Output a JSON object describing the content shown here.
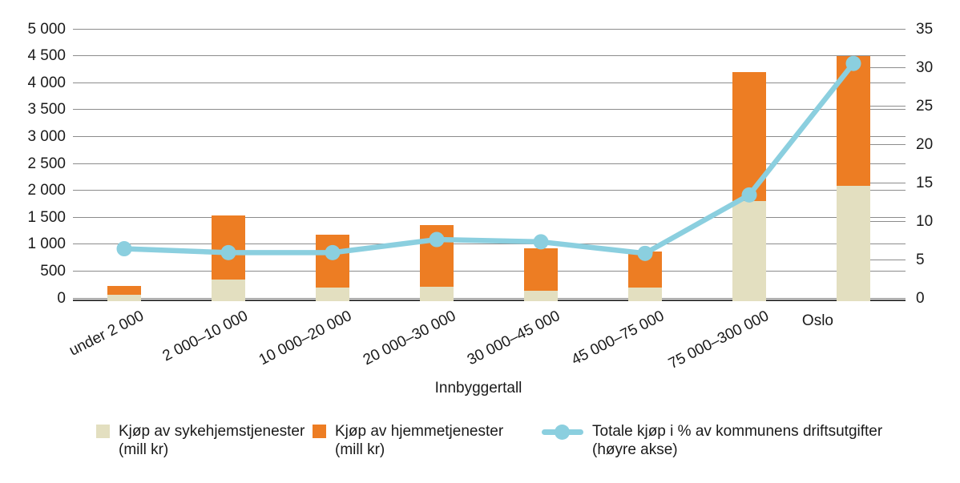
{
  "chart_data": {
    "type": "bar",
    "subtype": "stacked-bar-with-line-combo",
    "categories": [
      "under 2 000",
      "2 000–10 000",
      "10 000–20 000",
      "20 000–30 000",
      "30 000–45 000",
      "45 000–75 000",
      "75 000–300 000",
      "Oslo"
    ],
    "xlabel": "Innbyggertall",
    "grid": true,
    "legend_position": "bottom",
    "left_axis": {
      "min": 0,
      "max": 5000,
      "step": 500,
      "tick_labels": [
        "5 000",
        "4 500",
        "4 000",
        "3 500",
        "3 000",
        "2 500",
        "2 000",
        "1 500",
        "1 000",
        "500",
        "0"
      ]
    },
    "right_axis": {
      "min": 0,
      "max": 35,
      "step": 5,
      "tick_labels": [
        "35",
        "30",
        "25",
        "20",
        "15",
        "10",
        "5",
        "0"
      ]
    },
    "series": [
      {
        "name": "Kjøp av sykehjemstjenester (mill kr)",
        "type": "bar",
        "stacked": true,
        "axis": "left",
        "color": "#E3DFC0",
        "values": [
          60,
          340,
          190,
          210,
          130,
          200,
          1800,
          2090
        ]
      },
      {
        "name": "Kjøp av hjemmetjenester (mill kr)",
        "type": "bar",
        "stacked": true,
        "axis": "left",
        "color": "#ED7D23",
        "values": [
          170,
          1190,
          990,
          1140,
          800,
          670,
          2400,
          2410
        ]
      },
      {
        "name": "Totale kjøp i % av kommunens driftsutgifter (høyre akse)",
        "type": "line",
        "axis": "right",
        "color": "#8BCFDF",
        "values": [
          6.4,
          5.9,
          5.9,
          7.6,
          7.3,
          5.8,
          13.4,
          30.5
        ]
      }
    ]
  },
  "legend": {
    "items": [
      {
        "line1": "Kjøp av sykehjemstjenester",
        "line2": "(mill kr)",
        "swatch": "square",
        "color": "#E3DFC0"
      },
      {
        "line1": "Kjøp av hjemmetjenester",
        "line2": "(mill kr)",
        "swatch": "square",
        "color": "#ED7D23"
      },
      {
        "line1": "Totale kjøp i % av kommunens driftsutgifter",
        "line2": "(høyre akse)",
        "swatch": "line-dot",
        "color": "#8BCFDF"
      }
    ]
  },
  "colors": {
    "grid": "#8C8C8C",
    "baseline": "#3F3F3F",
    "text": "#1A1A1A",
    "background": "#FFFFFF"
  }
}
